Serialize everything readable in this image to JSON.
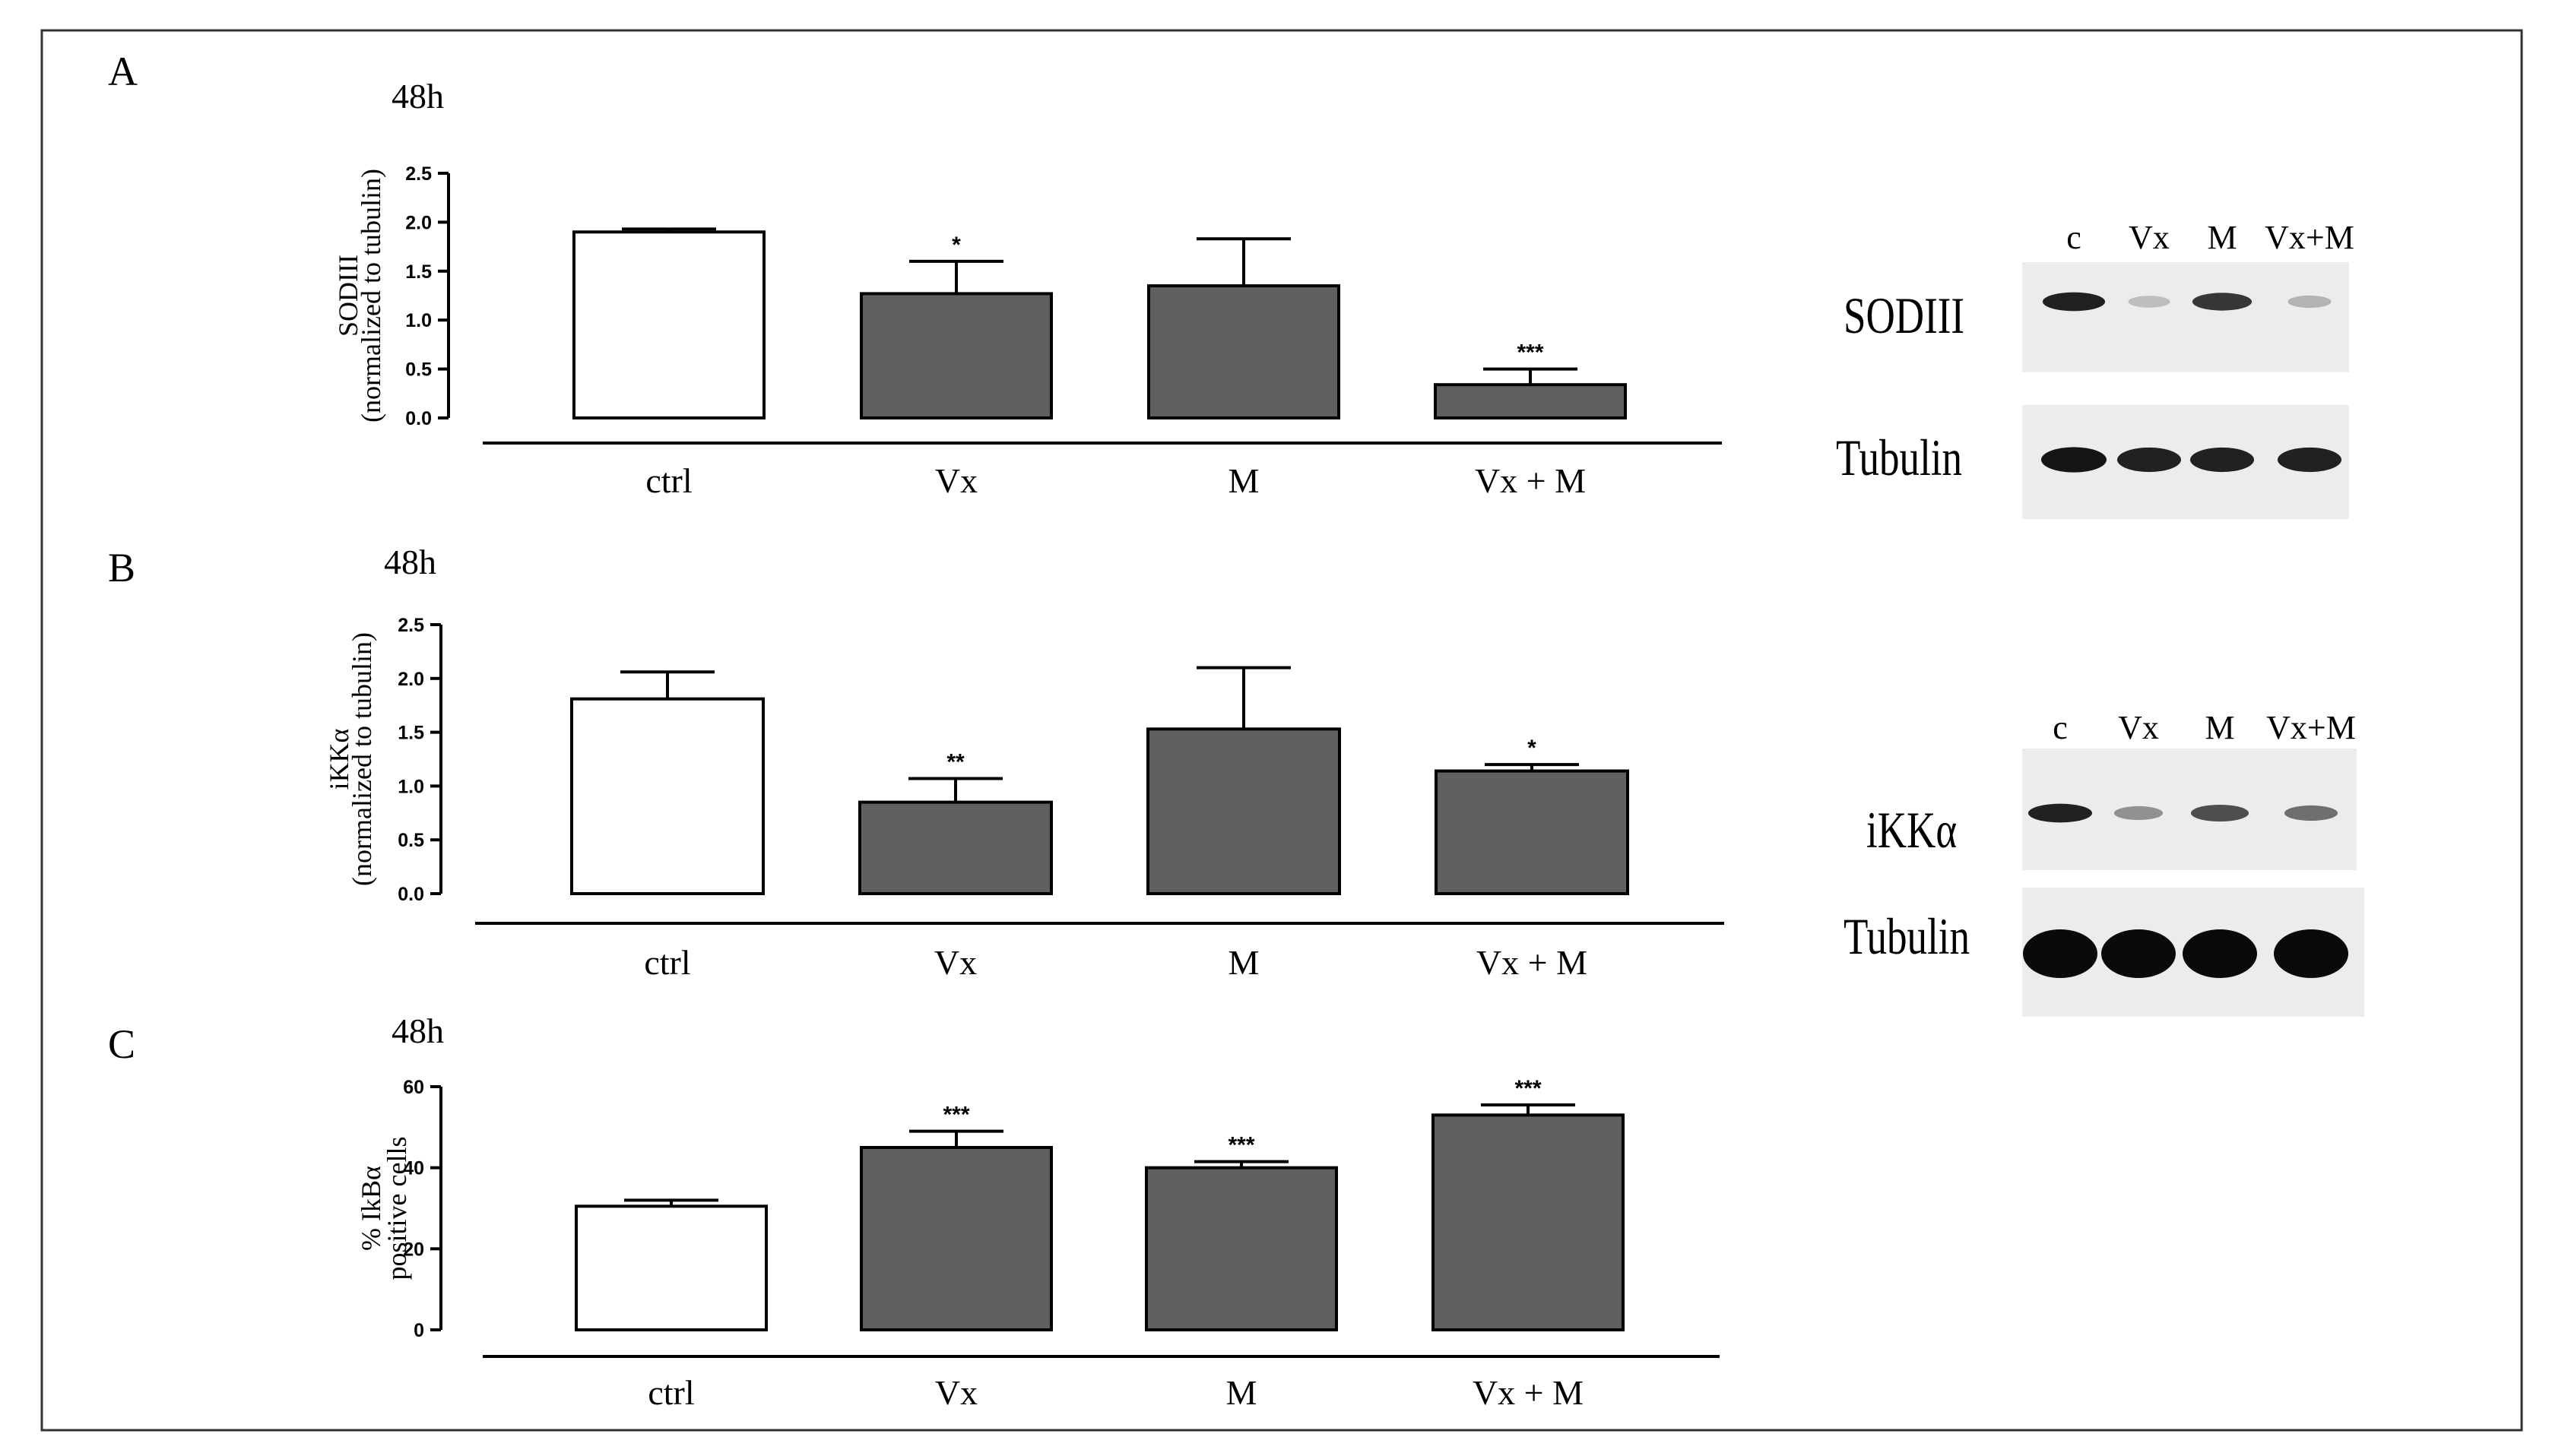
{
  "figure": {
    "panels": [
      {
        "letter": "A",
        "time": "48h"
      },
      {
        "letter": "B",
        "time": "48h"
      },
      {
        "letter": "C",
        "time": "48h"
      }
    ]
  },
  "chart_data": [
    {
      "type": "bar",
      "panel": "A",
      "title": "48h",
      "ylabel": "SODIII",
      "ylabel2": "(normalized to tubulin)",
      "categories": [
        "ctrl",
        "Vx",
        "M",
        "Vx + M"
      ],
      "values": [
        1.9,
        1.27,
        1.35,
        0.34
      ],
      "errors": [
        0.03,
        0.33,
        0.48,
        0.16
      ],
      "significance": [
        "",
        "*",
        "",
        "***"
      ],
      "fills": [
        "#ffffff",
        "#606060",
        "#606060",
        "#606060"
      ],
      "ylim": [
        0,
        2.5
      ],
      "yticks": [
        "0.0",
        "0.5",
        "1.0",
        "1.5",
        "2.0",
        "2.5"
      ]
    },
    {
      "type": "bar",
      "panel": "B",
      "title": "48h",
      "ylabel": "iKKα",
      "ylabel2": "(normalized to tubulin)",
      "categories": [
        "ctrl",
        "Vx",
        "M",
        "Vx + M"
      ],
      "values": [
        1.81,
        0.85,
        1.53,
        1.14
      ],
      "errors": [
        0.25,
        0.22,
        0.57,
        0.06
      ],
      "significance": [
        "",
        "**",
        "",
        "*"
      ],
      "fills": [
        "#ffffff",
        "#606060",
        "#606060",
        "#606060"
      ],
      "ylim": [
        0,
        2.5
      ],
      "yticks": [
        "0.0",
        "0.5",
        "1.0",
        "1.5",
        "2.0",
        "2.5"
      ]
    },
    {
      "type": "bar",
      "panel": "C",
      "title": "48h",
      "ylabel": "% IkBα",
      "ylabel2": "positive cells",
      "categories": [
        "ctrl",
        "Vx",
        "M",
        "Vx + M"
      ],
      "values": [
        30.5,
        45,
        40,
        53
      ],
      "errors": [
        1.5,
        4,
        1.5,
        2.5
      ],
      "significance": [
        "",
        "***",
        "***",
        "***"
      ],
      "fills": [
        "#ffffff",
        "#606060",
        "#606060",
        "#606060"
      ],
      "ylim": [
        0,
        60
      ],
      "yticks": [
        "0",
        "20",
        "40",
        "60"
      ]
    }
  ],
  "blots": [
    {
      "panel": "A",
      "lanes": [
        "c",
        "Vx",
        "M",
        "Vx+M"
      ],
      "rows": [
        {
          "label": "SODIII",
          "intensity": [
            0.9,
            0.2,
            0.8,
            0.25
          ]
        },
        {
          "label": "Tubulin",
          "intensity": [
            0.95,
            0.9,
            0.9,
            0.9
          ]
        }
      ]
    },
    {
      "panel": "B",
      "lanes": [
        "c",
        "Vx",
        "M",
        "Vx+M"
      ],
      "rows": [
        {
          "label": "iKKα",
          "intensity": [
            0.9,
            0.4,
            0.7,
            0.55
          ]
        },
        {
          "label": "Tubulin",
          "intensity": [
            1.0,
            1.0,
            1.0,
            1.0
          ]
        }
      ]
    }
  ]
}
